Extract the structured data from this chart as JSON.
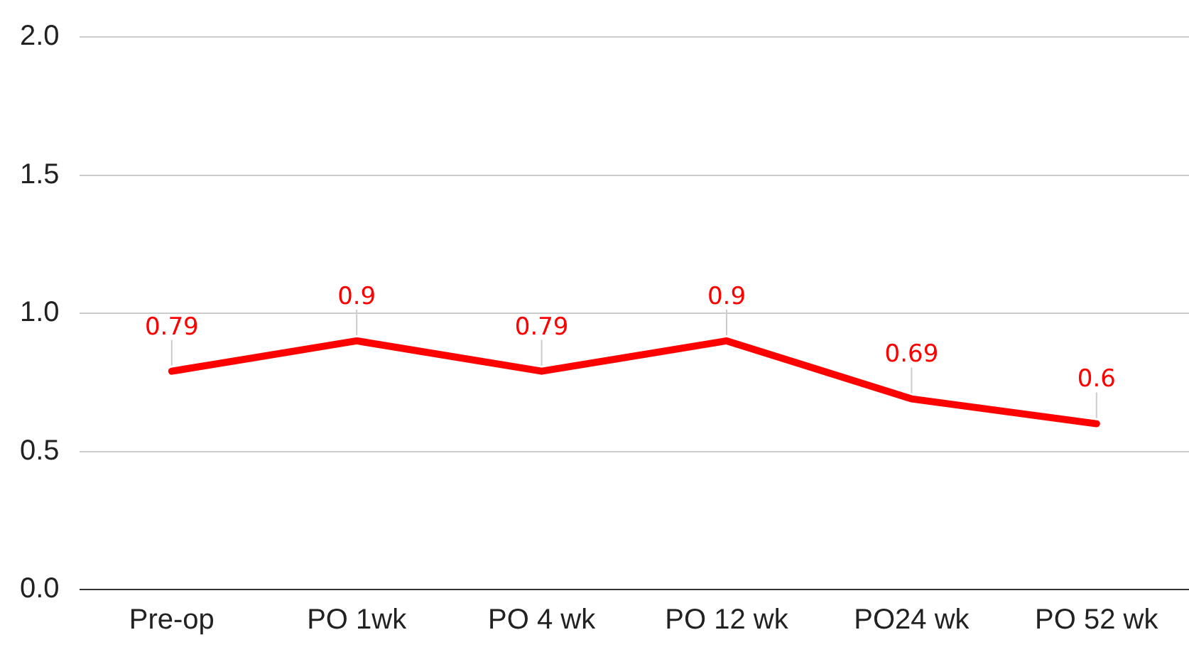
{
  "chart_data": {
    "type": "line",
    "categories": [
      "Pre-op",
      "PO 1wk",
      "PO 4 wk",
      "PO 12 wk",
      "PO24 wk",
      "PO 52 wk"
    ],
    "series": [
      {
        "color": "#ff0000",
        "values": [
          0.79,
          0.9,
          0.79,
          0.9,
          0.69,
          0.6
        ]
      }
    ],
    "ylim": [
      0,
      2
    ],
    "yticks": [
      {
        "value": 0,
        "label": "0.0"
      },
      {
        "value": 0.5,
        "label": "0.5"
      },
      {
        "value": 1,
        "label": "1.0"
      },
      {
        "value": 1.5,
        "label": "1.5"
      },
      {
        "value": 2,
        "label": "2.0"
      }
    ],
    "grid": "y",
    "data_labels": true,
    "legend": false,
    "marker": "none",
    "line_style": "solid"
  }
}
